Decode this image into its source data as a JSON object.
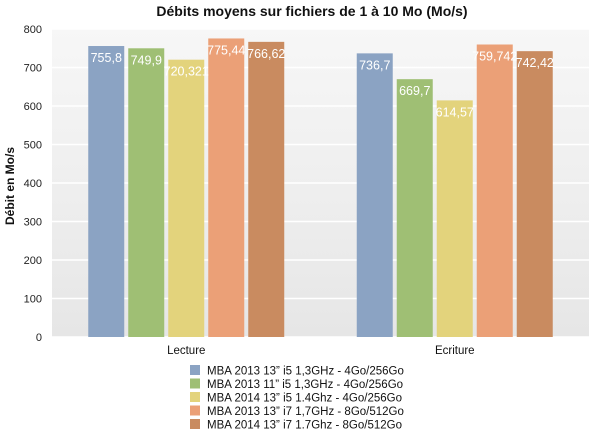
{
  "chart_data": {
    "type": "bar",
    "title": "Débits moyens sur fichiers de 1 à 10 Mo (Mo/s)",
    "xlabel": "",
    "ylabel": "Débit en Mo/s",
    "ylim": [
      0,
      800
    ],
    "yticks": [
      0,
      100,
      200,
      300,
      400,
      500,
      600,
      700,
      800
    ],
    "grid": true,
    "legend_position": "bottom",
    "categories": [
      "Lecture",
      "Ecriture"
    ],
    "series": [
      {
        "name": "MBA 2013 13” i5 1,3GHz - 4Go/256Go",
        "values": [
          755.8,
          736.7
        ],
        "labels": [
          "755,8",
          "736,7"
        ],
        "color": "#8ba3c3"
      },
      {
        "name": "MBA 2013 11” i5 1,3GHz - 4Go/256Go",
        "values": [
          749.9,
          669.7
        ],
        "labels": [
          "749,9",
          "669,7"
        ],
        "color": "#9fbf74"
      },
      {
        "name": "MBA 2014 13” i5 1.4Ghz - 4Go/256Go",
        "values": [
          720.321,
          614.57
        ],
        "labels": [
          "720,321",
          "614,57"
        ],
        "color": "#e3d37c"
      },
      {
        "name": "MBA 2013 13” i7 1,7GHz - 8Go/512Go",
        "values": [
          775.44,
          759.742
        ],
        "labels": [
          "775,44",
          "759,742"
        ],
        "color": "#eba077"
      },
      {
        "name": "MBA 2014 13” i7 1.7Ghz - 8Go/512Go",
        "values": [
          766.62,
          742.42
        ],
        "labels": [
          "766,62",
          "742,42"
        ],
        "color": "#c98b60"
      }
    ]
  }
}
